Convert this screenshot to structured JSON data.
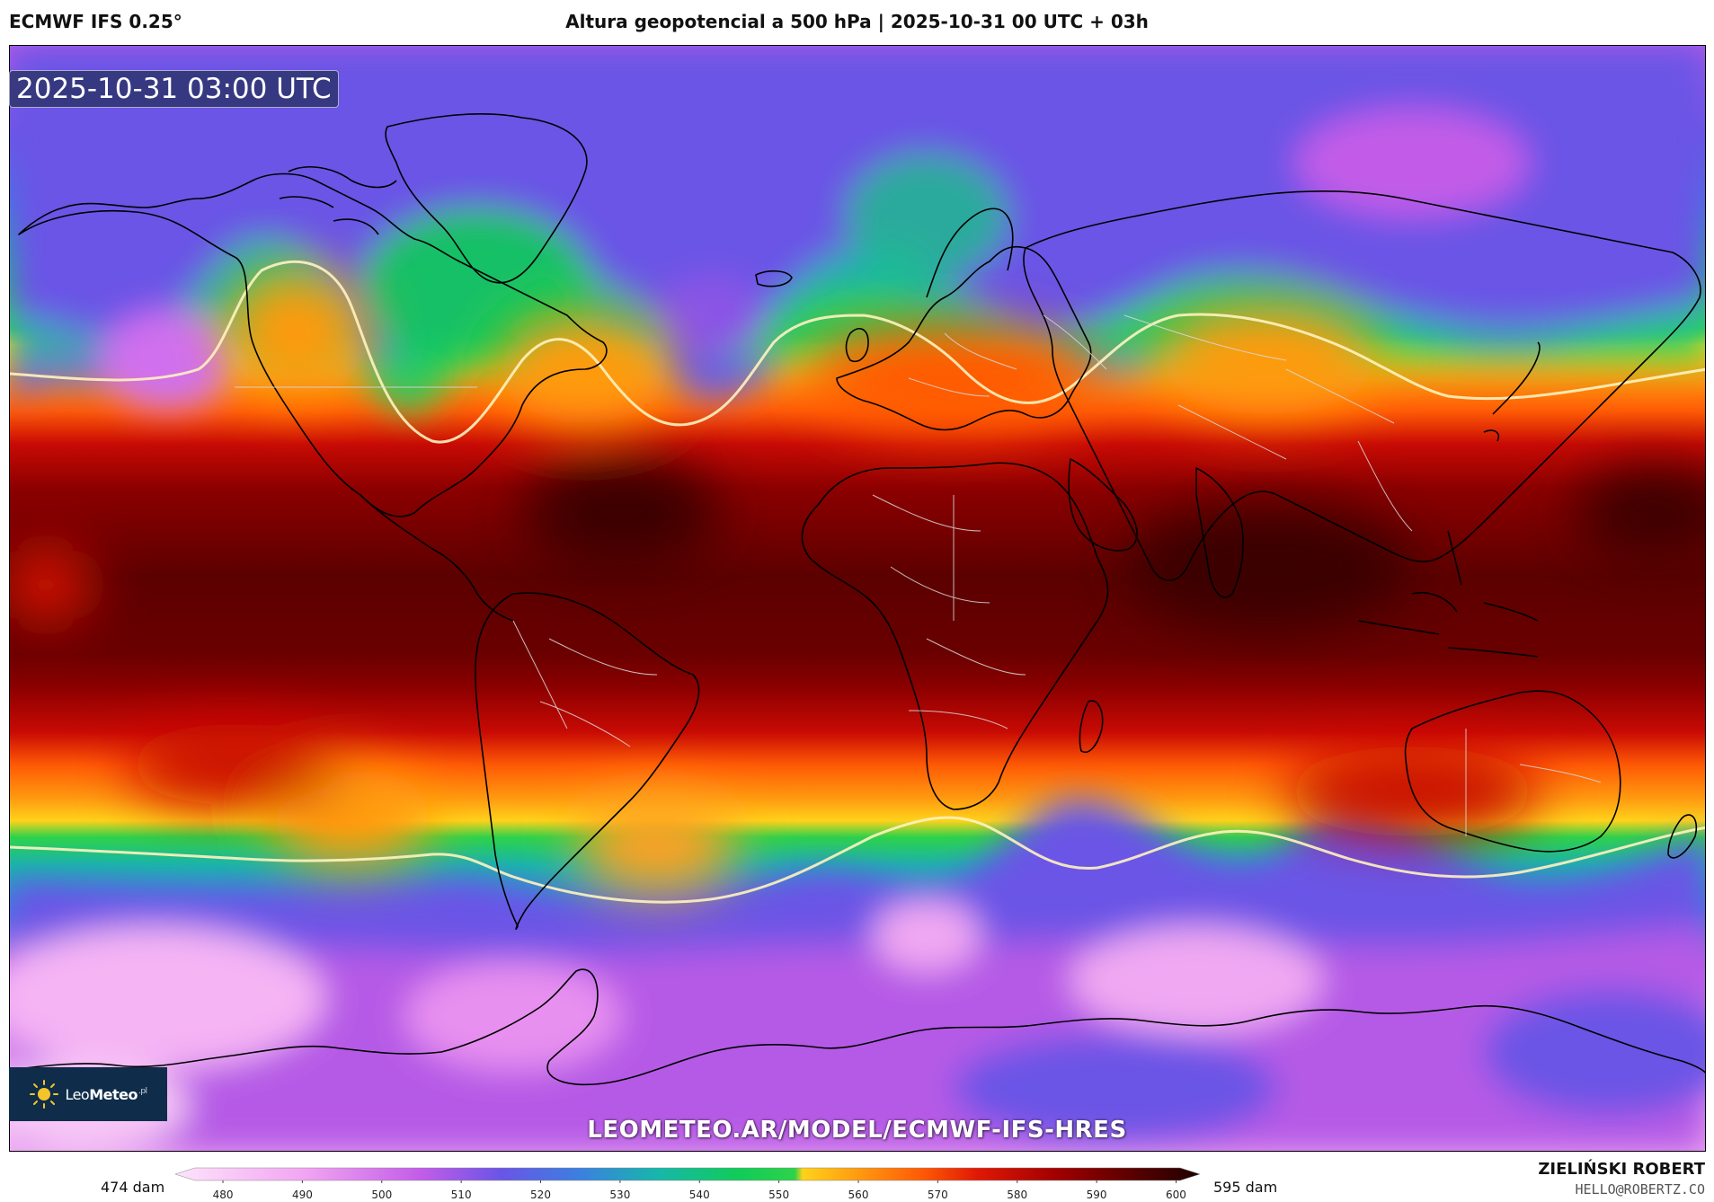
{
  "header": {
    "model": "ECMWF IFS 0.25°",
    "title": "Altura geopotencial a 500 hPa | 2025-10-31 00 UTC + 03h"
  },
  "map": {
    "valid_time": "2025-10-31 03:00 UTC",
    "field": "500 hPa geopotential height",
    "projection": "equirectangular, global",
    "coastlines_color": "#000000",
    "borders_color": "#cccccc",
    "contour_highlight": 552
  },
  "branding": {
    "logo_name_light": "Leo",
    "logo_name_bold": "Meteo",
    "logo_suffix": ".pl",
    "url": "LEOMETEO.AR/MODEL/ECMWF-IFS-HRES"
  },
  "colorbar": {
    "min_label": "474 dam",
    "max_label": "595 dam",
    "ticks": [
      "480",
      "490",
      "500",
      "510",
      "520",
      "530",
      "540",
      "550",
      "560",
      "570",
      "580",
      "590",
      "600"
    ],
    "stops": [
      {
        "value": 474,
        "color": "#fde4fb"
      },
      {
        "value": 490,
        "color": "#f2a6f2"
      },
      {
        "value": 505,
        "color": "#c25ce8"
      },
      {
        "value": 515,
        "color": "#6a55e6"
      },
      {
        "value": 525,
        "color": "#3b80e0"
      },
      {
        "value": 535,
        "color": "#16b8a8"
      },
      {
        "value": 545,
        "color": "#10cc58"
      },
      {
        "value": 552,
        "color": "#2ed24a"
      },
      {
        "value": 553,
        "color": "#ffd21a"
      },
      {
        "value": 560,
        "color": "#ff9a10"
      },
      {
        "value": 568,
        "color": "#ff5a05"
      },
      {
        "value": 575,
        "color": "#e01806"
      },
      {
        "value": 585,
        "color": "#a00000"
      },
      {
        "value": 595,
        "color": "#560000"
      },
      {
        "value": 603,
        "color": "#1f0000"
      }
    ]
  },
  "credits": {
    "author": "ZIELIŃSKI ROBERT",
    "email": "HELLO@ROBERTZ.CO"
  }
}
